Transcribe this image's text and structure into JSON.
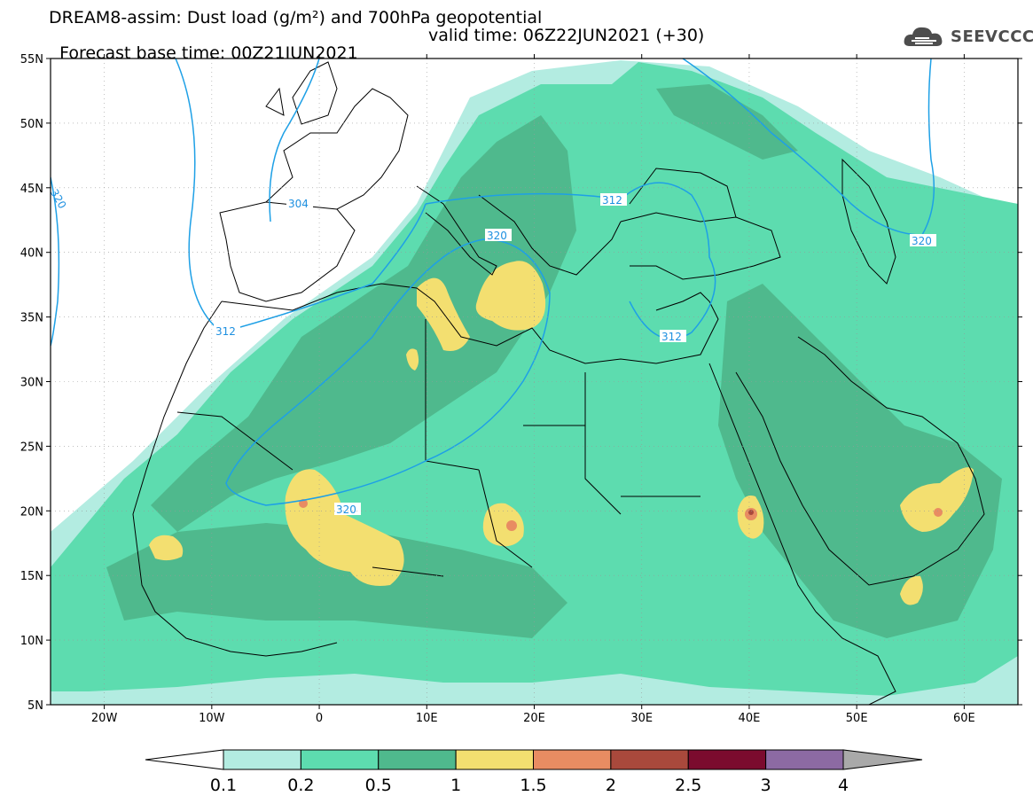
{
  "header": {
    "title_line1": "DREAM8-assim: Dust load (g/m²) and 700hPa geopotential",
    "base_time": "Forecast base time: 00Z21JUN2021",
    "valid_time": "valid time: 06Z22JUN2021 (+30)"
  },
  "logo": {
    "text": "SEEVCCC",
    "icon": "cloud-icon"
  },
  "axes": {
    "lat_labels": [
      "55N",
      "50N",
      "45N",
      "40N",
      "35N",
      "30N",
      "25N",
      "20N",
      "15N",
      "10N",
      "5N"
    ],
    "lon_labels": [
      "20W",
      "10W",
      "0",
      "10E",
      "20E",
      "30E",
      "40E",
      "50E",
      "60E"
    ]
  },
  "contour_labels": [
    "304",
    "312",
    "312",
    "312",
    "320",
    "320",
    "320",
    "320",
    "320"
  ],
  "colorbar": {
    "labels": [
      "0.1",
      "0.2",
      "0.5",
      "1",
      "1.5",
      "2",
      "2.5",
      "3",
      "4"
    ],
    "colors": [
      "#b3ece1",
      "#5ddcaf",
      "#4fb98d",
      "#f3df70",
      "#e88c62",
      "#a9493c",
      "#7b0b2e",
      "#8c6aa3",
      "#a9a9a9"
    ]
  }
}
